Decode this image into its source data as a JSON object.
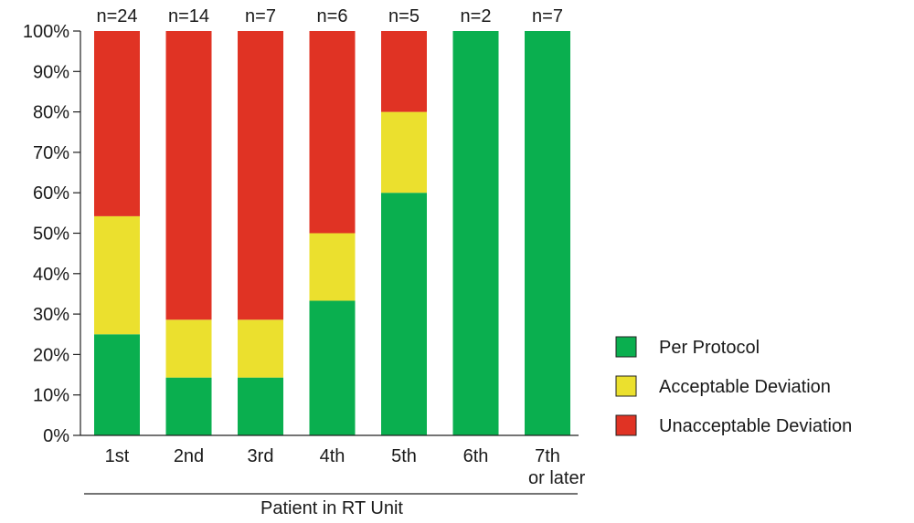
{
  "chart_data": {
    "type": "bar",
    "stacked": true,
    "categories": [
      "1st",
      "2nd",
      "3rd",
      "4th",
      "5th",
      "6th",
      "7th or later"
    ],
    "category_lines": [
      [
        "1st"
      ],
      [
        "2nd"
      ],
      [
        "3rd"
      ],
      [
        "4th"
      ],
      [
        "5th"
      ],
      [
        "6th"
      ],
      [
        "7th",
        "or later"
      ]
    ],
    "n_labels": [
      "n=24",
      "n=14",
      "n=7",
      "n=6",
      "n=5",
      "n=2",
      "n=7"
    ],
    "series": [
      {
        "name": "Per Protocol",
        "color": "#0aaf4f",
        "values": [
          25,
          14.3,
          14.3,
          33.3,
          60,
          100,
          100
        ]
      },
      {
        "name": "Acceptable Deviation",
        "color": "#ebe02e",
        "values": [
          29.2,
          14.3,
          14.3,
          16.7,
          20,
          0,
          0
        ]
      },
      {
        "name": "Unacceptable Deviation",
        "color": "#e03324",
        "values": [
          45.8,
          71.4,
          71.4,
          50,
          20,
          0,
          0
        ]
      }
    ],
    "yticks": [
      "0%",
      "10%",
      "20%",
      "30%",
      "40%",
      "50%",
      "60%",
      "70%",
      "80%",
      "90%",
      "100%"
    ],
    "ylim": [
      0,
      100
    ],
    "xlabel": "Patient in RT Unit",
    "ylabel": "",
    "grid": false,
    "legend_position": "right"
  }
}
